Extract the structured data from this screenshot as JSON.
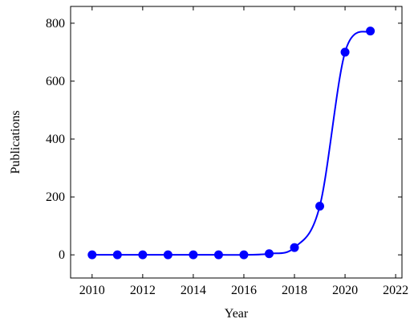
{
  "chart_data": {
    "type": "line",
    "title": "",
    "xlabel": "Year",
    "ylabel": "Publications",
    "xlim": [
      2009.15,
      2022.25
    ],
    "ylim": [
      -80,
      858
    ],
    "x_ticks": [
      2010,
      2012,
      2014,
      2016,
      2018,
      2020,
      2022
    ],
    "y_ticks": [
      0,
      200,
      400,
      600,
      800
    ],
    "grid": false,
    "legend": "none",
    "series": [
      {
        "color": "#0000ff",
        "marker": "circle",
        "smooth": true,
        "x": [
          2010,
          2011,
          2012,
          2013,
          2014,
          2015,
          2016,
          2017,
          2018,
          2019,
          2020,
          2021
        ],
        "y": [
          0,
          0,
          0,
          0,
          0,
          0,
          0,
          4,
          25,
          168,
          700,
          773
        ]
      }
    ]
  }
}
